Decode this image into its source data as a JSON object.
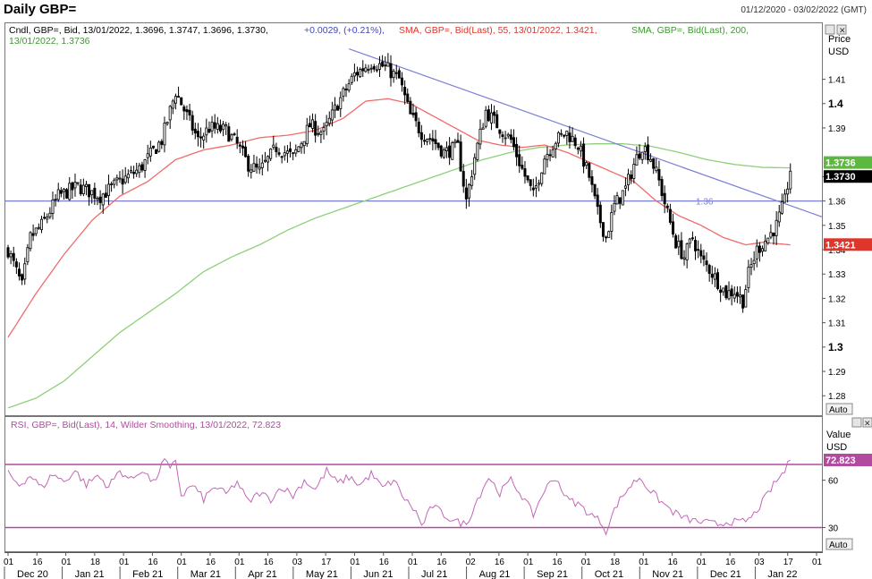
{
  "header": {
    "title": "Daily GBP=",
    "date_range": "01/12/2020 - 03/02/2022 (GMT)"
  },
  "colors": {
    "candle": "#000000",
    "sma55": "#f26b6b",
    "sma200": "#8ed07a",
    "trendline": "#7b7fd4",
    "rsi": "#c266b6",
    "rsi_level": "#b24a9f",
    "last_price_bg": "#000000",
    "sma200_bg": "#5cb83e",
    "sma55_bg": "#e0352b"
  },
  "price_panel": {
    "legend_candle": "Cndl, GBP=, Bid, 13/01/2022, 1.3696, 1.3747, 1.3696, 1.3730,",
    "legend_change": "+0.0029, (+0.21%),",
    "legend_sma55": "SMA, GBP=, Bid(Last),  55, 13/01/2022, 1.3421,",
    "legend_sma200_a": "SMA, GBP=, Bid(Last),  200,",
    "legend_sma200_b": "13/01/2022, 1.3736",
    "axis_title": "Price",
    "axis_unit": "USD",
    "auto_label": "Auto",
    "hline_label": "1.36",
    "badge_sma200": "1.3736",
    "badge_last": "1.3730",
    "badge_sma55": "1.3421"
  },
  "rsi_panel": {
    "legend": "RSI, GBP=, Bid(Last),  14, Wilder Smoothing, 13/01/2022, 72.823",
    "axis_title": "Value",
    "axis_unit": "USD",
    "auto_label": "Auto",
    "badge_value": "72.823"
  },
  "chart_data": {
    "type": "candlestick",
    "price_ticks": [
      {
        "label": "1.41",
        "value": 1.41,
        "bold": false
      },
      {
        "label": "1.4",
        "value": 1.4,
        "bold": true
      },
      {
        "label": "1.39",
        "value": 1.39,
        "bold": false
      },
      {
        "label": "1.37",
        "value": 1.37,
        "bold": false
      },
      {
        "label": "1.36",
        "value": 1.36,
        "bold": false
      },
      {
        "label": "1.35",
        "value": 1.35,
        "bold": false
      },
      {
        "label": "1.34",
        "value": 1.34,
        "bold": false
      },
      {
        "label": "1.33",
        "value": 1.33,
        "bold": false
      },
      {
        "label": "1.32",
        "value": 1.32,
        "bold": false
      },
      {
        "label": "1.31",
        "value": 1.31,
        "bold": false
      },
      {
        "label": "1.3",
        "value": 1.3,
        "bold": true
      },
      {
        "label": "1.29",
        "value": 1.29,
        "bold": false
      },
      {
        "label": "1.28",
        "value": 1.28,
        "bold": false
      }
    ],
    "price_range": [
      1.272,
      1.433
    ],
    "horizontal_line": 1.36,
    "trendline": {
      "start": [
        "17 May 21",
        1.4225
      ],
      "end": [
        "03 Feb 22",
        1.3535
      ]
    },
    "rsi_ticks": [
      {
        "label": "60",
        "value": 60
      },
      {
        "label": "30",
        "value": 30
      }
    ],
    "rsi_range": [
      15,
      100
    ],
    "rsi_levels": [
      70,
      30
    ],
    "x_ticks": [
      "01",
      "16",
      "01",
      "18",
      "01",
      "16",
      "01",
      "16",
      "01",
      "16",
      "03",
      "17",
      "01",
      "16",
      "01",
      "16",
      "02",
      "16",
      "01",
      "16",
      "01",
      "18",
      "01",
      "16",
      "01",
      "16",
      "03",
      "17",
      "01"
    ],
    "month_labels": [
      "Dec 20",
      "Jan 21",
      "Feb 21",
      "Mar 21",
      "Apr 21",
      "May 21",
      "Jun 21",
      "Jul 21",
      "Aug 21",
      "Sep 21",
      "Oct 21",
      "Nov 21",
      "Dec 21",
      "Jan 22"
    ],
    "close_anchors": [
      [
        0,
        1.34
      ],
      [
        5,
        1.325
      ],
      [
        8,
        1.345
      ],
      [
        12,
        1.35
      ],
      [
        18,
        1.362
      ],
      [
        25,
        1.366
      ],
      [
        33,
        1.362
      ],
      [
        40,
        1.368
      ],
      [
        47,
        1.373
      ],
      [
        55,
        1.385
      ],
      [
        60,
        1.405
      ],
      [
        64,
        1.395
      ],
      [
        68,
        1.385
      ],
      [
        72,
        1.39
      ],
      [
        78,
        1.389
      ],
      [
        82,
        1.383
      ],
      [
        86,
        1.375
      ],
      [
        90,
        1.372
      ],
      [
        96,
        1.382
      ],
      [
        102,
        1.378
      ],
      [
        108,
        1.391
      ],
      [
        113,
        1.388
      ],
      [
        118,
        1.4
      ],
      [
        124,
        1.412
      ],
      [
        130,
        1.417
      ],
      [
        135,
        1.415
      ],
      [
        140,
        1.41
      ],
      [
        144,
        1.395
      ],
      [
        148,
        1.388
      ],
      [
        152,
        1.385
      ],
      [
        156,
        1.38
      ],
      [
        161,
        1.382
      ],
      [
        164,
        1.36
      ],
      [
        167,
        1.378
      ],
      [
        171,
        1.397
      ],
      [
        176,
        1.39
      ],
      [
        180,
        1.385
      ],
      [
        184,
        1.373
      ],
      [
        188,
        1.362
      ],
      [
        192,
        1.378
      ],
      [
        196,
        1.385
      ],
      [
        200,
        1.388
      ],
      [
        204,
        1.383
      ],
      [
        208,
        1.37
      ],
      [
        211,
        1.355
      ],
      [
        214,
        1.345
      ],
      [
        217,
        1.358
      ],
      [
        221,
        1.365
      ],
      [
        224,
        1.375
      ],
      [
        227,
        1.383
      ],
      [
        230,
        1.378
      ],
      [
        233,
        1.368
      ],
      [
        236,
        1.355
      ],
      [
        239,
        1.343
      ],
      [
        242,
        1.337
      ],
      [
        245,
        1.345
      ],
      [
        248,
        1.336
      ],
      [
        251,
        1.332
      ],
      [
        254,
        1.327
      ],
      [
        257,
        1.322
      ],
      [
        260,
        1.323
      ],
      [
        263,
        1.319
      ],
      [
        265,
        1.33
      ],
      [
        268,
        1.34
      ],
      [
        272,
        1.345
      ],
      [
        275,
        1.35
      ],
      [
        278,
        1.36
      ],
      [
        280,
        1.373
      ]
    ],
    "sma55_anchors": [
      [
        0,
        1.304
      ],
      [
        10,
        1.322
      ],
      [
        20,
        1.338
      ],
      [
        30,
        1.352
      ],
      [
        40,
        1.362
      ],
      [
        50,
        1.368
      ],
      [
        60,
        1.377
      ],
      [
        70,
        1.381
      ],
      [
        80,
        1.383
      ],
      [
        90,
        1.386
      ],
      [
        100,
        1.387
      ],
      [
        110,
        1.389
      ],
      [
        120,
        1.394
      ],
      [
        128,
        1.401
      ],
      [
        136,
        1.402
      ],
      [
        144,
        1.4
      ],
      [
        152,
        1.395
      ],
      [
        160,
        1.39
      ],
      [
        168,
        1.385
      ],
      [
        176,
        1.383
      ],
      [
        184,
        1.382
      ],
      [
        192,
        1.383
      ],
      [
        200,
        1.38
      ],
      [
        208,
        1.376
      ],
      [
        216,
        1.372
      ],
      [
        224,
        1.368
      ],
      [
        232,
        1.36
      ],
      [
        240,
        1.354
      ],
      [
        248,
        1.35
      ],
      [
        256,
        1.345
      ],
      [
        264,
        1.342
      ],
      [
        270,
        1.343
      ],
      [
        280,
        1.342
      ]
    ],
    "sma200_anchors": [
      [
        0,
        1.275
      ],
      [
        10,
        1.279
      ],
      [
        20,
        1.286
      ],
      [
        30,
        1.296
      ],
      [
        40,
        1.306
      ],
      [
        50,
        1.314
      ],
      [
        60,
        1.322
      ],
      [
        70,
        1.331
      ],
      [
        80,
        1.337
      ],
      [
        90,
        1.342
      ],
      [
        100,
        1.348
      ],
      [
        110,
        1.353
      ],
      [
        120,
        1.357
      ],
      [
        130,
        1.361
      ],
      [
        140,
        1.365
      ],
      [
        150,
        1.369
      ],
      [
        160,
        1.373
      ],
      [
        170,
        1.377
      ],
      [
        180,
        1.38
      ],
      [
        190,
        1.382
      ],
      [
        200,
        1.383
      ],
      [
        210,
        1.3835
      ],
      [
        220,
        1.3835
      ],
      [
        230,
        1.3825
      ],
      [
        240,
        1.38
      ],
      [
        250,
        1.377
      ],
      [
        260,
        1.375
      ],
      [
        270,
        1.3738
      ],
      [
        280,
        1.3736
      ]
    ],
    "rsi_anchors": [
      [
        0,
        64
      ],
      [
        4,
        57
      ],
      [
        8,
        63
      ],
      [
        12,
        55
      ],
      [
        16,
        64
      ],
      [
        20,
        59
      ],
      [
        24,
        66
      ],
      [
        28,
        57
      ],
      [
        32,
        63
      ],
      [
        36,
        56
      ],
      [
        40,
        66
      ],
      [
        44,
        60
      ],
      [
        48,
        67
      ],
      [
        52,
        58
      ],
      [
        56,
        73
      ],
      [
        58,
        66
      ],
      [
        60,
        73
      ],
      [
        62,
        50
      ],
      [
        66,
        57
      ],
      [
        70,
        48
      ],
      [
        74,
        56
      ],
      [
        78,
        51
      ],
      [
        82,
        59
      ],
      [
        86,
        46
      ],
      [
        90,
        52
      ],
      [
        94,
        48
      ],
      [
        98,
        56
      ],
      [
        102,
        50
      ],
      [
        106,
        60
      ],
      [
        110,
        54
      ],
      [
        114,
        66
      ],
      [
        118,
        58
      ],
      [
        122,
        62
      ],
      [
        126,
        57
      ],
      [
        130,
        64
      ],
      [
        134,
        55
      ],
      [
        138,
        60
      ],
      [
        142,
        48
      ],
      [
        146,
        40
      ],
      [
        148,
        31
      ],
      [
        152,
        44
      ],
      [
        156,
        38
      ],
      [
        160,
        34
      ],
      [
        164,
        32
      ],
      [
        168,
        48
      ],
      [
        172,
        62
      ],
      [
        176,
        52
      ],
      [
        180,
        60
      ],
      [
        184,
        50
      ],
      [
        188,
        38
      ],
      [
        192,
        54
      ],
      [
        196,
        62
      ],
      [
        200,
        48
      ],
      [
        204,
        45
      ],
      [
        208,
        39
      ],
      [
        212,
        34
      ],
      [
        214,
        28
      ],
      [
        218,
        45
      ],
      [
        222,
        55
      ],
      [
        226,
        62
      ],
      [
        230,
        53
      ],
      [
        234,
        46
      ],
      [
        238,
        40
      ],
      [
        242,
        36
      ],
      [
        246,
        34
      ],
      [
        250,
        33
      ],
      [
        254,
        32
      ],
      [
        258,
        34
      ],
      [
        262,
        33
      ],
      [
        266,
        36
      ],
      [
        270,
        46
      ],
      [
        274,
        57
      ],
      [
        278,
        66
      ],
      [
        280,
        72.8
      ]
    ]
  }
}
